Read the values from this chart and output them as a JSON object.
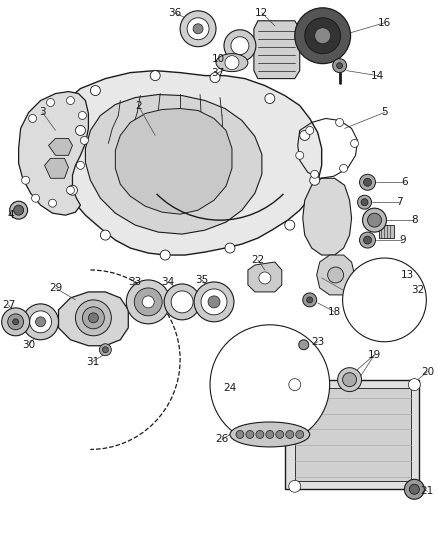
{
  "bg_color": "#ffffff",
  "line_color": "#1a1a1a",
  "label_color": "#1a1a1a",
  "fig_width": 4.38,
  "fig_height": 5.33,
  "dpi": 100,
  "lw": 0.7,
  "lw_thick": 1.0,
  "gray_fill": "#e8e8e8",
  "mid_fill": "#d0d0d0",
  "dark_fill": "#888888",
  "white": "#ffffff"
}
